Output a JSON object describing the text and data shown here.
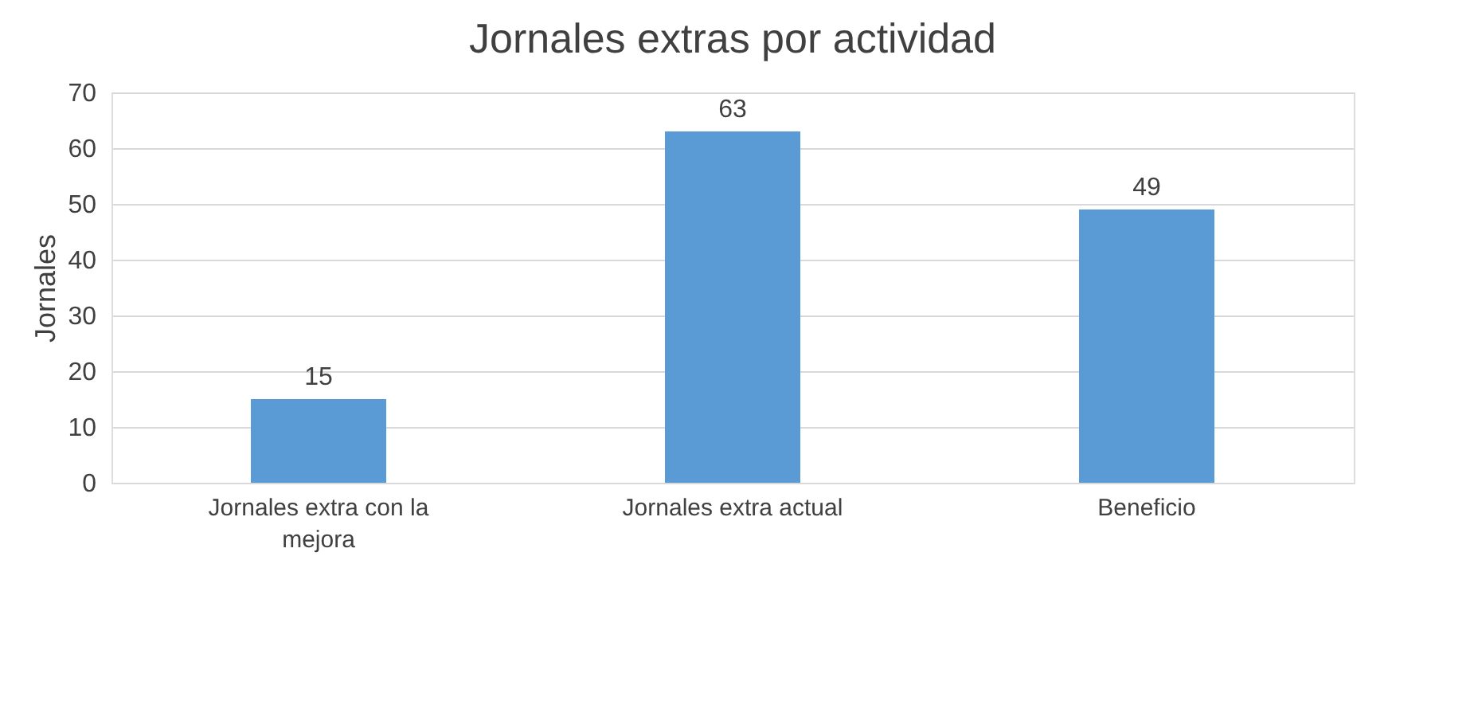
{
  "chart_data": {
    "type": "bar",
    "title": "Jornales extras por actividad",
    "ylabel": "Jornales",
    "categories": [
      "Jornales  extra con la mejora",
      "Jornales  extra actual",
      "Beneficio"
    ],
    "values": [
      15,
      63,
      49
    ],
    "color": "#5b9bd5",
    "ylim": [
      0,
      70
    ],
    "yticks": [
      0,
      10,
      20,
      30,
      40,
      50,
      60,
      70
    ],
    "grid": "y",
    "data_labels": true
  }
}
